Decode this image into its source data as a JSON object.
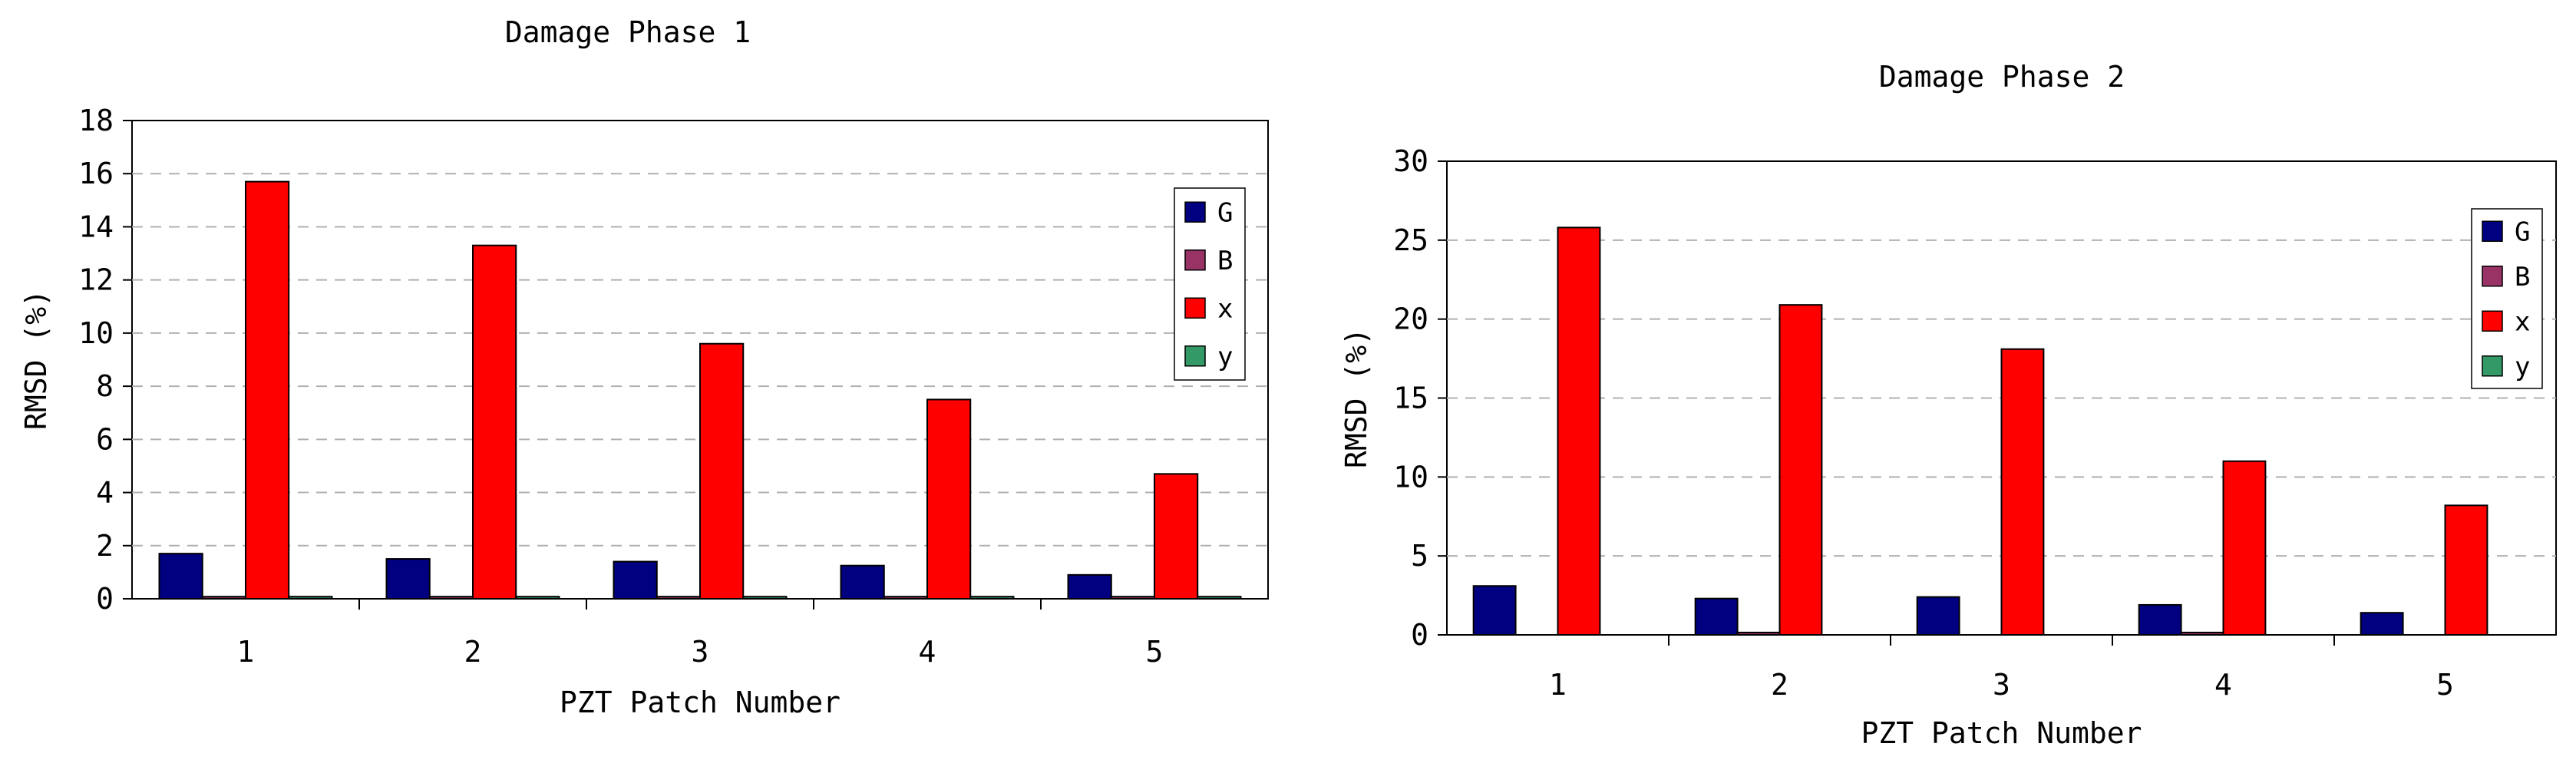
{
  "chart_data": [
    {
      "type": "bar",
      "title": "Damage Phase 1",
      "xlabel": "PZT Patch Number",
      "ylabel": "RMSD (%)",
      "categories": [
        "1",
        "2",
        "3",
        "4",
        "5"
      ],
      "ylim": [
        0,
        18
      ],
      "yticks": [
        0,
        2,
        4,
        6,
        8,
        10,
        12,
        14,
        16,
        18
      ],
      "grid": true,
      "legend_position": "right",
      "series": [
        {
          "name": "G",
          "color": "#000080",
          "values": [
            1.7,
            1.5,
            1.4,
            1.25,
            0.9
          ]
        },
        {
          "name": "B",
          "color": "#993366",
          "values": [
            0.08,
            0.08,
            0.08,
            0.08,
            0.08
          ]
        },
        {
          "name": "x",
          "color": "#ff0000",
          "values": [
            15.7,
            13.3,
            9.6,
            7.5,
            4.7
          ]
        },
        {
          "name": "y",
          "color": "#339966",
          "values": [
            0.08,
            0.08,
            0.08,
            0.08,
            0.08
          ]
        }
      ]
    },
    {
      "type": "bar",
      "title": "Damage Phase 2",
      "xlabel": "PZT Patch Number",
      "ylabel": "RMSD (%)",
      "categories": [
        "1",
        "2",
        "3",
        "4",
        "5"
      ],
      "ylim": [
        0,
        30
      ],
      "yticks": [
        0,
        5,
        10,
        15,
        20,
        25,
        30
      ],
      "grid": true,
      "legend_position": "right",
      "series": [
        {
          "name": "G",
          "color": "#000080",
          "values": [
            3.1,
            2.3,
            2.4,
            1.9,
            1.4
          ]
        },
        {
          "name": "B",
          "color": "#993366",
          "values": [
            0,
            0.15,
            0,
            0.15,
            0
          ]
        },
        {
          "name": "x",
          "color": "#ff0000",
          "values": [
            25.8,
            20.9,
            18.1,
            11.0,
            8.2
          ]
        },
        {
          "name": "y",
          "color": "#339966",
          "values": [
            0,
            0,
            0,
            0,
            0
          ]
        }
      ]
    }
  ]
}
